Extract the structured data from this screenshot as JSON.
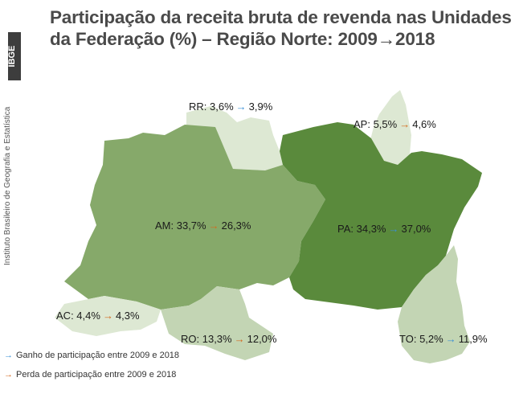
{
  "title": "Participação da receita bruta de revenda nas Unidades da Federação (%) – Região Norte: 2009→2018",
  "logo_text": "IBGE",
  "side_text": "Instituto Brasileiro de Geografia e Estatística",
  "states": {
    "RR": {
      "name": "RR",
      "v2009": "3,6%",
      "v2018": "3,9%",
      "trend": "gain"
    },
    "AP": {
      "name": "AP",
      "v2009": "5,5%",
      "v2018": "4,6%",
      "trend": "loss"
    },
    "AM": {
      "name": "AM",
      "v2009": "33,7%",
      "v2018": "26,3%",
      "trend": "loss"
    },
    "PA": {
      "name": "PA",
      "v2009": "34,3%",
      "v2018": "37,0%",
      "trend": "gain"
    },
    "AC": {
      "name": "AC",
      "v2009": "4,4%",
      "v2018": "4,3%",
      "trend": "loss"
    },
    "RO": {
      "name": "RO",
      "v2009": "13,3%",
      "v2018": "12,0%",
      "trend": "loss"
    },
    "TO": {
      "name": "TO",
      "v2009": "5,2%",
      "v2018": "11,9%",
      "trend": "gain"
    }
  },
  "legend": {
    "gain": "Ganho de participação entre 2009 e 2018",
    "loss": "Perda de participação entre 2009 e 2018"
  },
  "colors": {
    "gain": "#3a8fd6",
    "loss": "#d46a1f",
    "pa": "#5a8a3c",
    "am": "#86a96a",
    "light": "#dde8d3",
    "mid": "#c3d5b4"
  },
  "arrow_glyph": "→"
}
